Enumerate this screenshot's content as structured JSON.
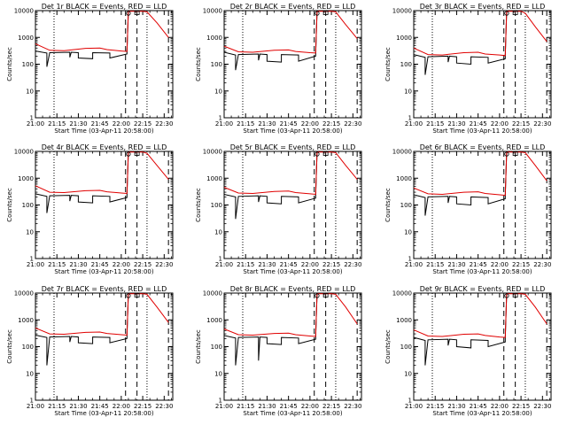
{
  "colors": {
    "events": "#000000",
    "lld": "#e00000",
    "background": "#ffffff"
  },
  "chart_data": [
    {
      "type": "line",
      "title": "Det 1r BLACK = Events, RED = LLD",
      "xlabel": "Start Time (03-Apr-11 20:58:00)",
      "ylabel": "Counts/sec",
      "yscale": "log",
      "ylim": [
        1,
        10000
      ],
      "x_ticks": [
        "21:00",
        "21:15",
        "21:30",
        "21:45",
        "22:00",
        "22:15",
        "22:30"
      ],
      "y_ticks": [
        "1",
        "10",
        "100",
        "1000",
        "10000"
      ],
      "series": [
        {
          "name": "Events",
          "x": [
            "21:00",
            "21:08",
            "21:08",
            "21:10",
            "21:24",
            "21:24",
            "21:25",
            "21:30",
            "21:30",
            "21:40",
            "21:40",
            "21:52",
            "21:52",
            "22:04",
            "22:04",
            "22:05"
          ],
          "y": [
            310,
            260,
            80,
            270,
            280,
            180,
            280,
            270,
            170,
            160,
            270,
            260,
            170,
            240,
            280,
            10000
          ]
        },
        {
          "name": "LLD",
          "x": [
            "21:00",
            "21:10",
            "21:20",
            "21:35",
            "21:45",
            "21:50",
            "22:00",
            "22:04",
            "22:05",
            "22:15",
            "22:18",
            "22:25",
            "22:33"
          ],
          "y": [
            580,
            330,
            320,
            390,
            400,
            350,
            310,
            300,
            9500,
            9500,
            9000,
            3500,
            1000
          ]
        }
      ]
    },
    {
      "type": "line",
      "title": "Det 2r BLACK = Events, RED = LLD",
      "xlabel": "Start Time (03-Apr-11 20:58:00)",
      "ylabel": "Counts/sec",
      "yscale": "log",
      "ylim": [
        1,
        10000
      ],
      "x_ticks": [
        "21:00",
        "21:15",
        "21:30",
        "21:45",
        "22:00",
        "22:15",
        "22:30"
      ],
      "y_ticks": [
        "1",
        "10",
        "100",
        "1000",
        "10000"
      ],
      "series": [
        {
          "name": "Events",
          "x": [
            "21:00",
            "21:08",
            "21:08",
            "21:10",
            "21:24",
            "21:24",
            "21:25",
            "21:30",
            "21:30",
            "21:40",
            "21:40",
            "21:52",
            "21:52",
            "22:04",
            "22:04",
            "22:05"
          ],
          "y": [
            280,
            220,
            60,
            230,
            240,
            140,
            240,
            230,
            130,
            120,
            230,
            220,
            130,
            200,
            240,
            10000
          ]
        },
        {
          "name": "LLD",
          "x": [
            "21:00",
            "21:10",
            "21:20",
            "21:35",
            "21:45",
            "21:50",
            "22:00",
            "22:04",
            "22:05",
            "22:15",
            "22:18",
            "22:25",
            "22:33"
          ],
          "y": [
            470,
            290,
            280,
            330,
            340,
            300,
            270,
            260,
            9500,
            9500,
            9000,
            3000,
            900
          ]
        }
      ]
    },
    {
      "type": "line",
      "title": "Det 3r BLACK = Events, RED = LLD",
      "xlabel": "Start Time (03-Apr-11 20:58:00)",
      "ylabel": "Counts/sec",
      "yscale": "log",
      "ylim": [
        1,
        10000
      ],
      "x_ticks": [
        "21:00",
        "21:15",
        "21:30",
        "21:45",
        "22:00",
        "22:15",
        "22:30"
      ],
      "y_ticks": [
        "1",
        "10",
        "100",
        "1000",
        "10000"
      ],
      "series": [
        {
          "name": "Events",
          "x": [
            "21:00",
            "21:08",
            "21:08",
            "21:10",
            "21:24",
            "21:24",
            "21:25",
            "21:30",
            "21:30",
            "21:40",
            "21:40",
            "21:52",
            "21:52",
            "22:04",
            "22:04",
            "22:05"
          ],
          "y": [
            230,
            180,
            40,
            190,
            200,
            120,
            200,
            190,
            110,
            100,
            190,
            180,
            110,
            160,
            200,
            10000
          ]
        },
        {
          "name": "LLD",
          "x": [
            "21:00",
            "21:10",
            "21:20",
            "21:35",
            "21:45",
            "21:50",
            "22:00",
            "22:04",
            "22:05",
            "22:15",
            "22:18",
            "22:25",
            "22:33"
          ],
          "y": [
            400,
            230,
            220,
            270,
            280,
            240,
            220,
            210,
            9500,
            9500,
            8000,
            2500,
            700
          ]
        }
      ]
    },
    {
      "type": "line",
      "title": "Det 4r BLACK = Events, RED = LLD",
      "xlabel": "Start Time (03-Apr-11 20:58:00)",
      "ylabel": "Counts/sec",
      "yscale": "log",
      "ylim": [
        1,
        10000
      ],
      "x_ticks": [
        "21:00",
        "21:15",
        "21:30",
        "21:45",
        "22:00",
        "22:15",
        "22:30"
      ],
      "y_ticks": [
        "1",
        "10",
        "100",
        "1000",
        "10000"
      ],
      "series": [
        {
          "name": "Events",
          "x": [
            "21:00",
            "21:08",
            "21:08",
            "21:10",
            "21:24",
            "21:24",
            "21:25",
            "21:30",
            "21:30",
            "21:40",
            "21:40",
            "21:52",
            "21:52",
            "22:04",
            "22:04",
            "22:05"
          ],
          "y": [
            260,
            210,
            50,
            220,
            230,
            140,
            230,
            220,
            130,
            120,
            220,
            210,
            130,
            190,
            230,
            10000
          ]
        },
        {
          "name": "LLD",
          "x": [
            "21:00",
            "21:10",
            "21:20",
            "21:35",
            "21:45",
            "21:50",
            "22:00",
            "22:04",
            "22:05",
            "22:15",
            "22:18",
            "22:25",
            "22:33"
          ],
          "y": [
            520,
            300,
            290,
            340,
            350,
            310,
            280,
            270,
            9500,
            9500,
            8500,
            3000,
            900
          ]
        }
      ]
    },
    {
      "type": "line",
      "title": "Det 5r BLACK = Events, RED = LLD",
      "xlabel": "Start Time (03-Apr-11 20:58:00)",
      "ylabel": "Counts/sec",
      "yscale": "log",
      "ylim": [
        1,
        10000
      ],
      "x_ticks": [
        "21:00",
        "21:15",
        "21:30",
        "21:45",
        "22:00",
        "22:15",
        "22:30"
      ],
      "y_ticks": [
        "1",
        "10",
        "100",
        "1000",
        "10000"
      ],
      "series": [
        {
          "name": "Events",
          "x": [
            "21:00",
            "21:08",
            "21:08",
            "21:10",
            "21:24",
            "21:24",
            "21:25",
            "21:30",
            "21:30",
            "21:40",
            "21:40",
            "21:52",
            "21:52",
            "22:04",
            "22:04",
            "22:05"
          ],
          "y": [
            250,
            200,
            30,
            210,
            220,
            130,
            220,
            210,
            120,
            110,
            210,
            200,
            120,
            180,
            220,
            10000
          ]
        },
        {
          "name": "LLD",
          "x": [
            "21:00",
            "21:10",
            "21:20",
            "21:35",
            "21:45",
            "21:50",
            "22:00",
            "22:04",
            "22:05",
            "22:15",
            "22:18",
            "22:25",
            "22:33"
          ],
          "y": [
            460,
            280,
            270,
            320,
            330,
            290,
            260,
            250,
            9500,
            9500,
            9000,
            3000,
            900
          ]
        }
      ]
    },
    {
      "type": "line",
      "title": "Det 6r BLACK = Events, RED = LLD",
      "xlabel": "Start Time (03-Apr-11 20:58:00)",
      "ylabel": "Counts/sec",
      "yscale": "log",
      "ylim": [
        1,
        10000
      ],
      "x_ticks": [
        "21:00",
        "21:15",
        "21:30",
        "21:45",
        "22:00",
        "22:15",
        "22:30"
      ],
      "y_ticks": [
        "1",
        "10",
        "100",
        "1000",
        "10000"
      ],
      "series": [
        {
          "name": "Events",
          "x": [
            "21:00",
            "21:08",
            "21:08",
            "21:10",
            "21:24",
            "21:24",
            "21:25",
            "21:30",
            "21:30",
            "21:40",
            "21:40",
            "21:52",
            "21:52",
            "22:04",
            "22:04",
            "22:05"
          ],
          "y": [
            240,
            190,
            40,
            200,
            210,
            120,
            210,
            200,
            110,
            100,
            200,
            190,
            110,
            170,
            210,
            10000
          ]
        },
        {
          "name": "LLD",
          "x": [
            "21:00",
            "21:10",
            "21:20",
            "21:35",
            "21:45",
            "21:50",
            "22:00",
            "22:04",
            "22:05",
            "22:15",
            "22:18",
            "22:25",
            "22:33"
          ],
          "y": [
            430,
            260,
            250,
            300,
            310,
            270,
            240,
            230,
            9500,
            9500,
            9000,
            3000,
            800
          ]
        }
      ]
    },
    {
      "type": "line",
      "title": "Det 7r BLACK = Events, RED = LLD",
      "xlabel": "Start Time (03-Apr-11 20:58:00)",
      "ylabel": "Counts/sec",
      "yscale": "log",
      "ylim": [
        1,
        10000
      ],
      "x_ticks": [
        "21:00",
        "21:15",
        "21:30",
        "21:45",
        "22:00",
        "22:15",
        "22:30"
      ],
      "y_ticks": [
        "1",
        "10",
        "100",
        "1000",
        "10000"
      ],
      "series": [
        {
          "name": "Events",
          "x": [
            "21:00",
            "21:08",
            "21:08",
            "21:10",
            "21:24",
            "21:24",
            "21:25",
            "21:30",
            "21:30",
            "21:40",
            "21:40",
            "21:52",
            "21:52",
            "22:04",
            "22:04",
            "22:05"
          ],
          "y": [
            270,
            220,
            20,
            230,
            240,
            150,
            240,
            230,
            140,
            130,
            230,
            220,
            140,
            200,
            240,
            10000
          ]
        },
        {
          "name": "LLD",
          "x": [
            "21:00",
            "21:10",
            "21:20",
            "21:35",
            "21:45",
            "21:50",
            "22:00",
            "22:04",
            "22:05",
            "22:15",
            "22:18",
            "22:25",
            "22:33"
          ],
          "y": [
            500,
            300,
            290,
            340,
            350,
            310,
            280,
            270,
            9500,
            9500,
            9000,
            3000,
            800
          ]
        }
      ]
    },
    {
      "type": "line",
      "title": "Det 8r BLACK = Events, RED = LLD",
      "xlabel": "Start Time (03-Apr-11 20:58:00)",
      "ylabel": "Counts/sec",
      "yscale": "log",
      "ylim": [
        1,
        10000
      ],
      "x_ticks": [
        "21:00",
        "21:15",
        "21:30",
        "21:45",
        "22:00",
        "22:15",
        "22:30"
      ],
      "y_ticks": [
        "1",
        "10",
        "100",
        "1000",
        "10000"
      ],
      "series": [
        {
          "name": "Events",
          "x": [
            "21:00",
            "21:08",
            "21:08",
            "21:10",
            "21:24",
            "21:24",
            "21:25",
            "21:30",
            "21:30",
            "21:40",
            "21:40",
            "21:52",
            "21:52",
            "22:04",
            "22:04",
            "22:05"
          ],
          "y": [
            260,
            210,
            20,
            220,
            230,
            30,
            230,
            220,
            130,
            120,
            220,
            210,
            130,
            190,
            230,
            10000
          ]
        },
        {
          "name": "LLD",
          "x": [
            "21:00",
            "21:10",
            "21:20",
            "21:35",
            "21:45",
            "21:50",
            "22:00",
            "22:04",
            "22:05",
            "22:15",
            "22:18",
            "22:25",
            "22:33"
          ],
          "y": [
            460,
            280,
            270,
            310,
            320,
            280,
            250,
            240,
            9500,
            9500,
            9000,
            3000,
            700
          ]
        }
      ]
    },
    {
      "type": "line",
      "title": "Det 9r BLACK = Events, RED = LLD",
      "xlabel": "Start Time (03-Apr-11 20:58:00)",
      "ylabel": "Counts/sec",
      "yscale": "log",
      "ylim": [
        1,
        10000
      ],
      "x_ticks": [
        "21:00",
        "21:15",
        "21:30",
        "21:45",
        "22:00",
        "22:15",
        "22:30"
      ],
      "y_ticks": [
        "1",
        "10",
        "100",
        "1000",
        "10000"
      ],
      "series": [
        {
          "name": "Events",
          "x": [
            "21:00",
            "21:08",
            "21:08",
            "21:10",
            "21:24",
            "21:24",
            "21:25",
            "21:30",
            "21:30",
            "21:40",
            "21:40",
            "21:52",
            "21:52",
            "22:04",
            "22:04",
            "22:05"
          ],
          "y": [
            220,
            170,
            20,
            180,
            190,
            110,
            190,
            180,
            100,
            90,
            180,
            170,
            100,
            150,
            190,
            10000
          ]
        },
        {
          "name": "LLD",
          "x": [
            "21:00",
            "21:10",
            "21:20",
            "21:35",
            "21:45",
            "21:50",
            "22:00",
            "22:04",
            "22:05",
            "22:15",
            "22:18",
            "22:25",
            "22:33"
          ],
          "y": [
            420,
            250,
            240,
            290,
            300,
            260,
            230,
            220,
            9500,
            9500,
            9000,
            3000,
            700
          ]
        }
      ]
    }
  ]
}
